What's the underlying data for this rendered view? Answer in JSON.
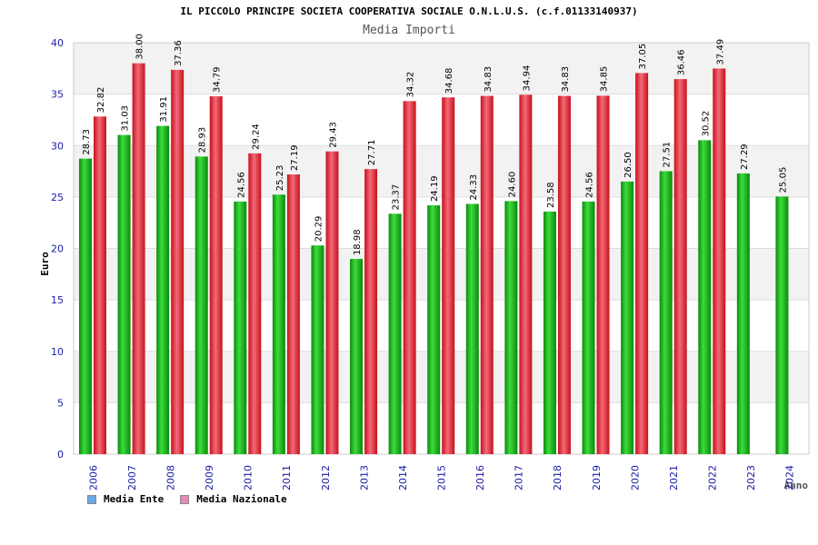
{
  "header": {
    "title": "IL PICCOLO PRINCIPE SOCIETA COOPERATIVA SOCIALE O.N.L.U.S. (c.f.01133140937)",
    "subtitle": "Media Importi"
  },
  "legend": {
    "ente_label": "Media Ente",
    "nazionale_label": "Media Nazionale",
    "ente_color": "#6aa7e8",
    "nazionale_color": "#e88ab8"
  },
  "chart_data": {
    "type": "bar",
    "title": "Media Importi",
    "xlabel": "Anno",
    "ylabel": "Euro",
    "ylim": [
      0,
      40
    ],
    "yticks": [
      0,
      5,
      10,
      15,
      20,
      25,
      30,
      35,
      40
    ],
    "categories": [
      "2006",
      "2007",
      "2008",
      "2009",
      "2010",
      "2011",
      "2012",
      "2013",
      "2014",
      "2015",
      "2016",
      "2017",
      "2018",
      "2019",
      "2020",
      "2021",
      "2022",
      "2023",
      "2024"
    ],
    "series": [
      {
        "name": "Media Ente",
        "color": "#18b818",
        "values": [
          28.73,
          31.03,
          31.91,
          28.93,
          24.56,
          25.23,
          20.29,
          18.98,
          23.37,
          24.19,
          24.33,
          24.6,
          23.58,
          24.56,
          26.5,
          27.51,
          30.52,
          27.29,
          25.05
        ],
        "labels": [
          "28.73",
          "31.03",
          "31.91",
          "28.93",
          "24.56",
          "25.23",
          "20.29",
          "18.98",
          "23.37",
          "24.19",
          "24.33",
          "24.60",
          "23.58",
          "24.56",
          "26.50",
          "27.51",
          "30.52",
          "27.29",
          "25.05"
        ]
      },
      {
        "name": "Media Nazionale",
        "color": "#e82030",
        "values": [
          32.82,
          38.0,
          37.36,
          34.79,
          29.24,
          27.19,
          29.43,
          27.71,
          34.32,
          34.68,
          34.83,
          34.94,
          34.83,
          34.85,
          37.05,
          36.46,
          37.49,
          null,
          null
        ],
        "labels": [
          "32.82",
          "38.00",
          "37.36",
          "34.79",
          "29.24",
          "27.19",
          "29.43",
          "27.71",
          "34.32",
          "34.68",
          "34.83",
          "34.94",
          "34.83",
          "34.85",
          "37.05",
          "36.46",
          "37.49",
          "",
          ""
        ]
      }
    ],
    "grid": true
  }
}
